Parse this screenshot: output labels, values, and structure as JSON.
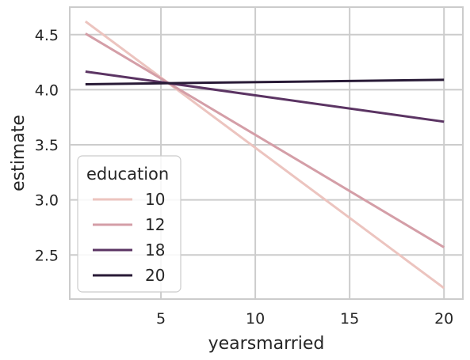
{
  "chart_data": {
    "type": "line",
    "xlabel": "yearsmarried",
    "ylabel": "estimate",
    "xlim": [
      0.167,
      21.0
    ],
    "ylim": [
      2.1,
      4.75
    ],
    "xticks": [
      5,
      10,
      15,
      20
    ],
    "yticks": [
      2.5,
      3.0,
      3.5,
      4.0,
      4.5
    ],
    "xtick_labels": [
      "5",
      "10",
      "15",
      "20"
    ],
    "ytick_labels": [
      "2.5",
      "3.0",
      "3.5",
      "4.0",
      "4.5"
    ],
    "grid": true,
    "legend": {
      "title": "education",
      "position": "lower-left"
    },
    "series": [
      {
        "name": "10",
        "color": "#ecc4bf",
        "x": [
          1,
          20
        ],
        "y": [
          4.62,
          2.2
        ]
      },
      {
        "name": "12",
        "color": "#d49ea7",
        "x": [
          1,
          20
        ],
        "y": [
          4.51,
          2.57
        ]
      },
      {
        "name": "18",
        "color": "#5b3463",
        "x": [
          1,
          20
        ],
        "y": [
          4.165,
          3.71
        ]
      },
      {
        "name": "20",
        "color": "#281a36",
        "x": [
          1,
          20
        ],
        "y": [
          4.05,
          4.09
        ]
      }
    ]
  }
}
